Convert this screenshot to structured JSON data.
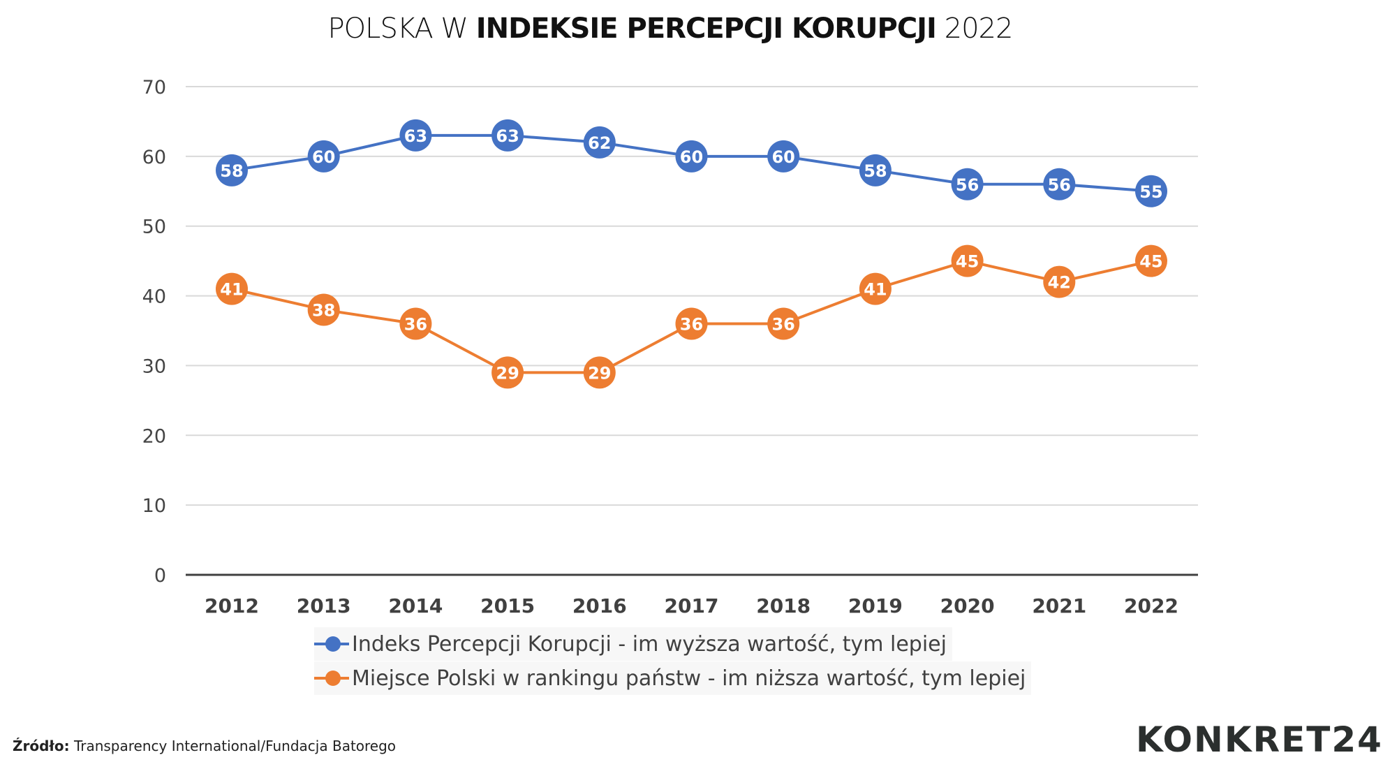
{
  "title": {
    "prefix": "POLSKA W ",
    "bold": "INDEKSIE PERCEPCJI KORUPCJI",
    "suffix": " 2022"
  },
  "chart_data": {
    "type": "line",
    "title": "POLSKA W INDEKSIE PERCEPCJI KORUPCJI 2022",
    "categories": [
      "2012",
      "2013",
      "2014",
      "2015",
      "2016",
      "2017",
      "2018",
      "2019",
      "2020",
      "2021",
      "2022"
    ],
    "ylim": [
      0,
      70
    ],
    "yticks": [
      0,
      10,
      20,
      30,
      40,
      50,
      60,
      70
    ],
    "grid": true,
    "legend_position": "bottom",
    "series": [
      {
        "name": "Indeks Percepcji Korupcji - im wyższa wartość, tym lepiej",
        "color": "#4472C4",
        "values": [
          58,
          60,
          63,
          63,
          62,
          60,
          60,
          58,
          56,
          56,
          55
        ]
      },
      {
        "name": "Miejsce Polski w rankingu państw - im niższa wartość, tym lepiej",
        "color": "#ED7D31",
        "values": [
          41,
          38,
          36,
          29,
          29,
          36,
          36,
          41,
          45,
          42,
          45
        ]
      }
    ]
  },
  "source": {
    "label": "Źródło:",
    "text": " Transparency International/Fundacja Batorego"
  },
  "logo": "KONKRET24"
}
